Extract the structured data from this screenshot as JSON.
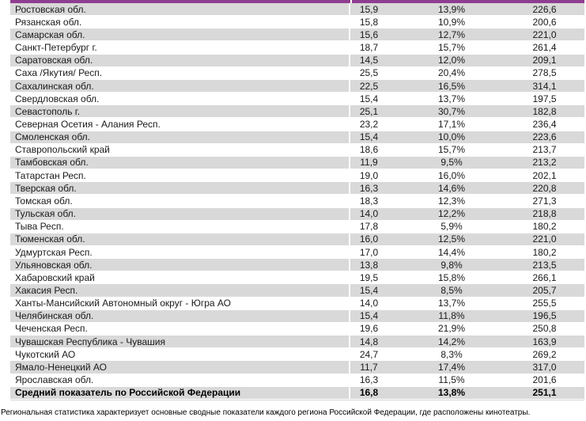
{
  "colors": {
    "header_bar": "#8f3e8f",
    "row_shade": "#d9d9d9"
  },
  "table": {
    "rows": [
      {
        "region": "Ростовская обл.",
        "v1": "15,9",
        "v2": "13,9%",
        "v3": "226,6"
      },
      {
        "region": "Рязанская обл.",
        "v1": "15,8",
        "v2": "10,9%",
        "v3": "200,6"
      },
      {
        "region": "Самарская обл.",
        "v1": "15,6",
        "v2": "12,7%",
        "v3": "221,0"
      },
      {
        "region": "Санкт-Петербург г.",
        "v1": "18,7",
        "v2": "15,7%",
        "v3": "261,4"
      },
      {
        "region": "Саратовская обл.",
        "v1": "14,5",
        "v2": "12,0%",
        "v3": "209,1"
      },
      {
        "region": "Саха /Якутия/ Респ.",
        "v1": "25,5",
        "v2": "20,4%",
        "v3": "278,5"
      },
      {
        "region": "Сахалинская обл.",
        "v1": "22,5",
        "v2": "16,5%",
        "v3": "314,1"
      },
      {
        "region": "Свердловская обл.",
        "v1": "15,4",
        "v2": "13,7%",
        "v3": "197,5"
      },
      {
        "region": "Севастополь г.",
        "v1": "25,1",
        "v2": "30,7%",
        "v3": "182,8"
      },
      {
        "region": "Северная Осетия - Алания Респ.",
        "v1": "23,2",
        "v2": "17,1%",
        "v3": "236,4"
      },
      {
        "region": "Смоленская обл.",
        "v1": "15,4",
        "v2": "10,0%",
        "v3": "223,6"
      },
      {
        "region": "Ставропольский край",
        "v1": "18,6",
        "v2": "15,7%",
        "v3": "213,7"
      },
      {
        "region": "Тамбовская обл.",
        "v1": "11,9",
        "v2": "9,5%",
        "v3": "213,2"
      },
      {
        "region": "Татарстан Респ.",
        "v1": "19,0",
        "v2": "16,0%",
        "v3": "202,1"
      },
      {
        "region": "Тверская обл.",
        "v1": "16,3",
        "v2": "14,6%",
        "v3": "220,8"
      },
      {
        "region": "Томская обл.",
        "v1": "18,3",
        "v2": "12,3%",
        "v3": "271,3"
      },
      {
        "region": "Тульская обл.",
        "v1": "14,0",
        "v2": "12,2%",
        "v3": "218,8"
      },
      {
        "region": "Тыва Респ.",
        "v1": "17,8",
        "v2": "5,9%",
        "v3": "180,2"
      },
      {
        "region": "Тюменская обл.",
        "v1": "16,0",
        "v2": "12,5%",
        "v3": "221,0"
      },
      {
        "region": "Удмуртская Респ.",
        "v1": "17,0",
        "v2": "14,4%",
        "v3": "180,2"
      },
      {
        "region": "Ульяновская обл.",
        "v1": "13,8",
        "v2": "9,8%",
        "v3": "213,5"
      },
      {
        "region": "Хабаровский край",
        "v1": "19,5",
        "v2": "15,8%",
        "v3": "266,1"
      },
      {
        "region": "Хакасия Респ.",
        "v1": "15,4",
        "v2": "8,5%",
        "v3": "205,7"
      },
      {
        "region": "Ханты-Мансийский Автономный округ - Югра АО",
        "v1": "14,0",
        "v2": "13,7%",
        "v3": "255,5"
      },
      {
        "region": "Челябинская обл.",
        "v1": "15,4",
        "v2": "11,8%",
        "v3": "196,5"
      },
      {
        "region": "Чеченская Респ.",
        "v1": "19,6",
        "v2": "21,9%",
        "v3": "250,8"
      },
      {
        "region": "Чувашская Республика - Чувашия",
        "v1": "14,8",
        "v2": "14,2%",
        "v3": "163,9"
      },
      {
        "region": "Чукотский АО",
        "v1": "24,7",
        "v2": "8,3%",
        "v3": "269,2"
      },
      {
        "region": "Ямало-Ненецкий АО",
        "v1": "11,7",
        "v2": "17,4%",
        "v3": "317,0"
      },
      {
        "region": "Ярославская обл.",
        "v1": "16,3",
        "v2": "11,5%",
        "v3": "201,6"
      }
    ],
    "summary_row": {
      "region": "Средний показатель по Российской Федерации",
      "v1": "16,8",
      "v2": "13,8%",
      "v3": "251,1"
    }
  },
  "footnote": "Региональная статистика характеризует основные сводные показатели каждого региона Российской Федерации, где расположены кинотеатры."
}
